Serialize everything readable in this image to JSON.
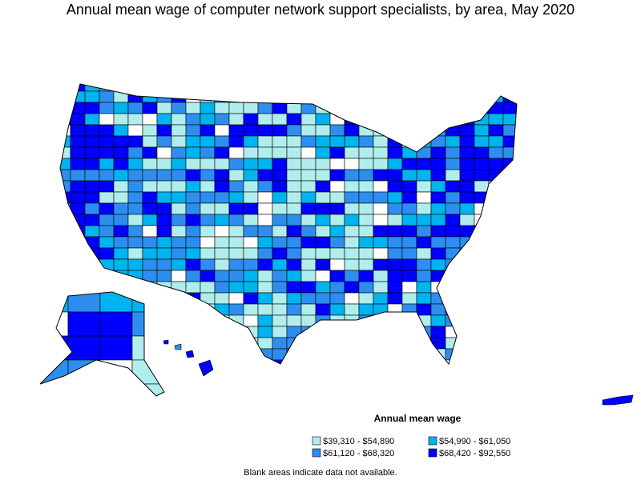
{
  "title": "Annual mean wage of computer network support specialists, by area, May 2020",
  "legend": {
    "title": "Annual mean wage",
    "items": [
      {
        "label": "$39,310 - $54,890",
        "color": "#b0eeee"
      },
      {
        "label": "$54,990 - $61,050",
        "color": "#00b4f0"
      },
      {
        "label": "$61,120 - $68,320",
        "color": "#2e8ef0"
      },
      {
        "label": "$68,420 - $92,550",
        "color": "#0000ff"
      }
    ]
  },
  "note": "Blank areas indicate data not available."
}
